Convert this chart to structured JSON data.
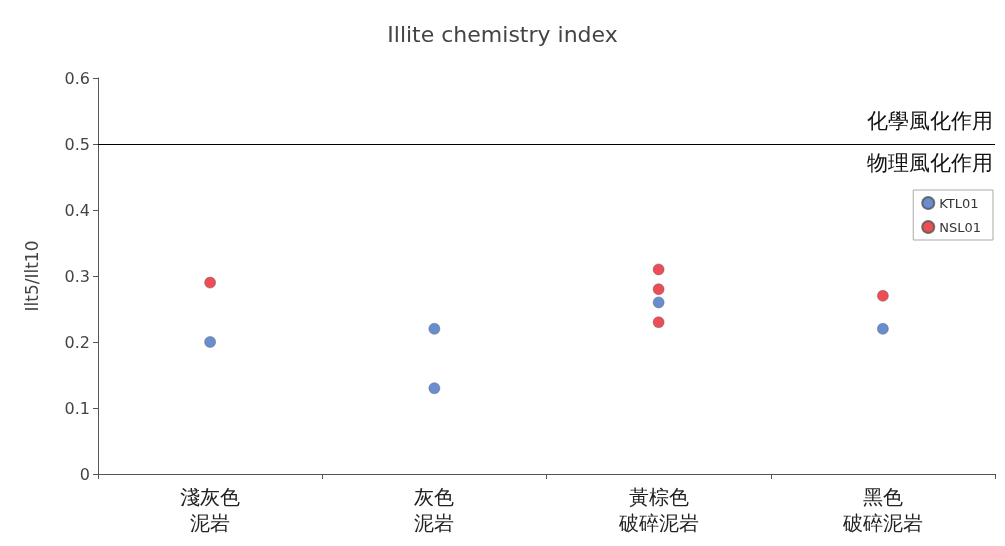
{
  "chart_data": {
    "type": "scatter",
    "title": "Illite chemistry index",
    "ylabel": "Ilt5/Ilt10",
    "categories": [
      "淺灰色泥岩",
      "灰色泥岩",
      "黃棕色破碎泥岩",
      "黑色破碎泥岩"
    ],
    "series": [
      {
        "name": "KTL01",
        "color": "#4472c4",
        "x": [
          "淺灰色泥岩",
          "灰色泥岩",
          "灰色泥岩",
          "黃棕色破碎泥岩",
          "黑色破碎泥岩"
        ],
        "values": [
          0.2,
          0.22,
          0.13,
          0.26,
          0.22
        ]
      },
      {
        "name": "NSL01",
        "color": "#e8202a",
        "x": [
          "淺灰色泥岩",
          "黃棕色破碎泥岩",
          "黃棕色破碎泥岩",
          "黃棕色破碎泥岩",
          "黑色破碎泥岩"
        ],
        "values": [
          0.29,
          0.31,
          0.28,
          0.23,
          0.27
        ]
      }
    ],
    "ylim": [
      0,
      0.6
    ],
    "yticks": [
      0,
      0.1,
      0.2,
      0.3,
      0.4,
      0.5,
      0.6
    ],
    "ref_lines": [
      {
        "axis": "y",
        "value": 0.5,
        "label": null,
        "color": "#000000"
      }
    ],
    "annotations": [
      {
        "text": "化學風化作用",
        "y": 0.5
      },
      {
        "text": "物理風化作用",
        "y": 0.5
      }
    ],
    "grid": false,
    "legend": "top right",
    "marker": "circle"
  }
}
